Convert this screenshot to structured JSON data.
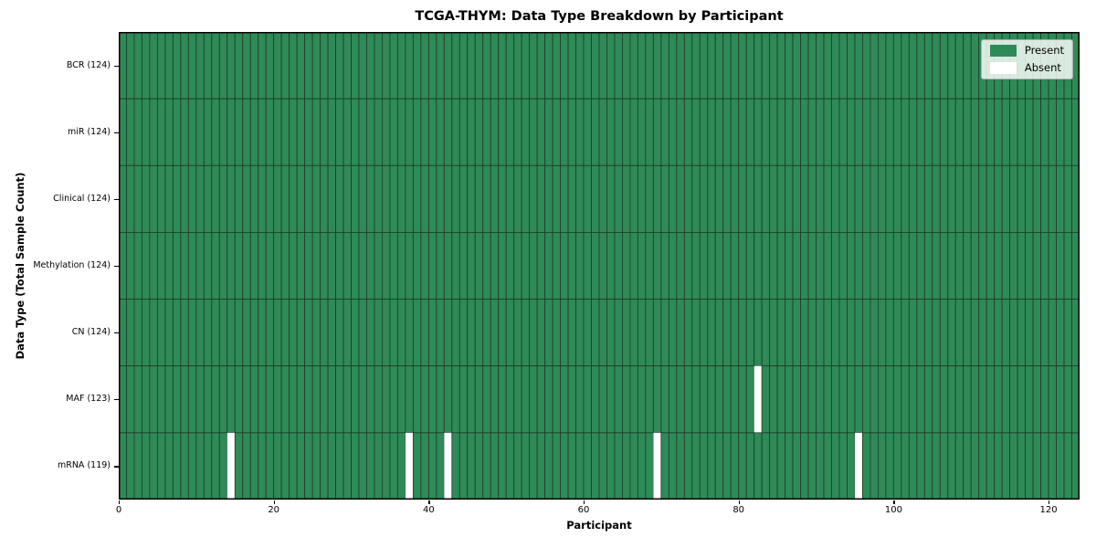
{
  "title": "TCGA-THYM: Data Type Breakdown by Participant",
  "axes": {
    "xlabel": "Participant",
    "ylabel": "Data Type (Total Sample Count)"
  },
  "legend": {
    "items": [
      {
        "label": "Present",
        "color_key": "present"
      },
      {
        "label": "Absent",
        "color_key": "absent"
      }
    ]
  },
  "colors": {
    "present": "#2e8b57",
    "absent": "#ffffff",
    "cell_edge": "#1f3d2b",
    "plot_border": "#000000"
  },
  "chart_data": {
    "type": "heatmap",
    "title": "TCGA-THYM: Data Type Breakdown by Participant",
    "xlabel": "Participant",
    "ylabel": "Data Type (Total Sample Count)",
    "n_participants": 124,
    "x_axis": {
      "min": 0,
      "max": 124,
      "ticks": [
        0,
        20,
        40,
        60,
        80,
        100,
        120
      ]
    },
    "legend_position": "upper right",
    "grid": false,
    "cell_states": {
      "present": 1,
      "absent": 0
    },
    "rows": [
      {
        "label": "BCR (124)",
        "data_type": "BCR",
        "present_count": 124,
        "absent_participants": []
      },
      {
        "label": "miR (124)",
        "data_type": "miR",
        "present_count": 124,
        "absent_participants": []
      },
      {
        "label": "Clinical (124)",
        "data_type": "Clinical",
        "present_count": 124,
        "absent_participants": []
      },
      {
        "label": "Methylation (124)",
        "data_type": "Methylation",
        "present_count": 124,
        "absent_participants": []
      },
      {
        "label": "CN (124)",
        "data_type": "CN",
        "present_count": 124,
        "absent_participants": []
      },
      {
        "label": "MAF (123)",
        "data_type": "MAF",
        "present_count": 123,
        "absent_participants": [
          82
        ]
      },
      {
        "label": "mRNA (119)",
        "data_type": "mRNA",
        "present_count": 119,
        "absent_participants": [
          14,
          37,
          42,
          69,
          95
        ]
      }
    ]
  }
}
